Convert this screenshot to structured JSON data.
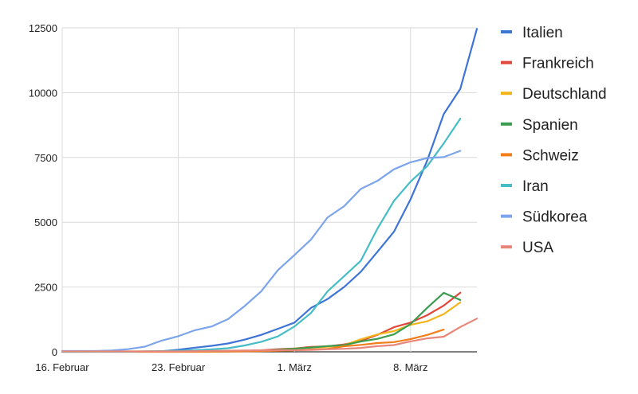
{
  "chart_data": {
    "type": "line",
    "title": "",
    "xlabel": "",
    "ylabel": "",
    "x_ticks": [
      {
        "day": 0,
        "label": "16. Februar"
      },
      {
        "day": 7,
        "label": "23. Februar"
      },
      {
        "day": 14,
        "label": "1. März"
      },
      {
        "day": 21,
        "label": "8. März"
      }
    ],
    "x_range": [
      0,
      25
    ],
    "ylim": [
      0,
      12500
    ],
    "y_ticks": [
      0,
      2500,
      5000,
      7500,
      10000,
      12500
    ],
    "grid": true,
    "legend_position": "right",
    "series": [
      {
        "name": "Italien",
        "color": "#3e74d6",
        "points": [
          [
            0,
            3
          ],
          [
            1,
            3
          ],
          [
            2,
            3
          ],
          [
            3,
            3
          ],
          [
            4,
            3
          ],
          [
            5,
            3
          ],
          [
            6,
            20
          ],
          [
            7,
            79
          ],
          [
            8,
            157
          ],
          [
            9,
            229
          ],
          [
            10,
            323
          ],
          [
            11,
            470
          ],
          [
            12,
            655
          ],
          [
            13,
            889
          ],
          [
            14,
            1128
          ],
          [
            15,
            1694
          ],
          [
            16,
            2036
          ],
          [
            17,
            2502
          ],
          [
            18,
            3089
          ],
          [
            19,
            3858
          ],
          [
            20,
            4636
          ],
          [
            21,
            5883
          ],
          [
            22,
            7375
          ],
          [
            23,
            9172
          ],
          [
            24,
            10149
          ],
          [
            25,
            12462
          ]
        ]
      },
      {
        "name": "Frankreich",
        "color": "#e0463a",
        "points": [
          [
            0,
            12
          ],
          [
            5,
            12
          ],
          [
            7,
            12
          ],
          [
            9,
            18
          ],
          [
            11,
            38
          ],
          [
            12,
            57
          ],
          [
            13,
            100
          ],
          [
            14,
            130
          ],
          [
            15,
            191
          ],
          [
            16,
            212
          ],
          [
            17,
            285
          ],
          [
            18,
            423
          ],
          [
            19,
            653
          ],
          [
            20,
            949
          ],
          [
            21,
            1126
          ],
          [
            22,
            1412
          ],
          [
            23,
            1784
          ],
          [
            24,
            2281
          ]
        ]
      },
      {
        "name": "Deutschland",
        "color": "#f3b41a",
        "points": [
          [
            0,
            16
          ],
          [
            7,
            16
          ],
          [
            9,
            18
          ],
          [
            11,
            27
          ],
          [
            12,
            46
          ],
          [
            13,
            57
          ],
          [
            14,
            130
          ],
          [
            15,
            159
          ],
          [
            16,
            196
          ],
          [
            17,
            262
          ],
          [
            18,
            482
          ],
          [
            19,
            670
          ],
          [
            20,
            799
          ],
          [
            21,
            1040
          ],
          [
            22,
            1176
          ],
          [
            23,
            1457
          ],
          [
            24,
            1908
          ]
        ]
      },
      {
        "name": "Spanien",
        "color": "#3a9c4e",
        "points": [
          [
            0,
            2
          ],
          [
            8,
            2
          ],
          [
            10,
            15
          ],
          [
            11,
            32
          ],
          [
            12,
            45
          ],
          [
            13,
            84
          ],
          [
            14,
            120
          ],
          [
            15,
            165
          ],
          [
            16,
            222
          ],
          [
            17,
            259
          ],
          [
            18,
            400
          ],
          [
            19,
            500
          ],
          [
            20,
            673
          ],
          [
            21,
            1073
          ],
          [
            22,
            1695
          ],
          [
            23,
            2277
          ],
          [
            24,
            2000
          ]
        ]
      },
      {
        "name": "Schweiz",
        "color": "#f27d1b",
        "points": [
          [
            0,
            0
          ],
          [
            8,
            1
          ],
          [
            10,
            8
          ],
          [
            11,
            18
          ],
          [
            12,
            27
          ],
          [
            13,
            42
          ],
          [
            14,
            56
          ],
          [
            15,
            90
          ],
          [
            16,
            114
          ],
          [
            17,
            214
          ],
          [
            18,
            268
          ],
          [
            19,
            337
          ],
          [
            20,
            374
          ],
          [
            21,
            491
          ],
          [
            22,
            652
          ],
          [
            23,
            858
          ]
        ]
      },
      {
        "name": "Iran",
        "color": "#46bdc6",
        "points": [
          [
            0,
            0
          ],
          [
            4,
            2
          ],
          [
            5,
            18
          ],
          [
            6,
            28
          ],
          [
            7,
            43
          ],
          [
            8,
            61
          ],
          [
            9,
            95
          ],
          [
            10,
            139
          ],
          [
            11,
            245
          ],
          [
            12,
            388
          ],
          [
            13,
            593
          ],
          [
            14,
            978
          ],
          [
            15,
            1501
          ],
          [
            16,
            2336
          ],
          [
            17,
            2922
          ],
          [
            18,
            3513
          ],
          [
            19,
            4747
          ],
          [
            20,
            5823
          ],
          [
            21,
            6566
          ],
          [
            22,
            7161
          ],
          [
            23,
            8042
          ],
          [
            24,
            9000
          ]
        ]
      },
      {
        "name": "Südkorea",
        "color": "#7ba4ec",
        "points": [
          [
            0,
            30
          ],
          [
            1,
            30
          ],
          [
            2,
            31
          ],
          [
            3,
            51
          ],
          [
            4,
            104
          ],
          [
            5,
            204
          ],
          [
            6,
            433
          ],
          [
            7,
            602
          ],
          [
            8,
            833
          ],
          [
            9,
            977
          ],
          [
            10,
            1261
          ],
          [
            11,
            1766
          ],
          [
            12,
            2337
          ],
          [
            13,
            3150
          ],
          [
            14,
            3736
          ],
          [
            15,
            4335
          ],
          [
            16,
            5186
          ],
          [
            17,
            5621
          ],
          [
            18,
            6284
          ],
          [
            19,
            6593
          ],
          [
            20,
            7041
          ],
          [
            21,
            7314
          ],
          [
            22,
            7478
          ],
          [
            23,
            7513
          ],
          [
            24,
            7755
          ]
        ]
      },
      {
        "name": "USA",
        "color": "#e8867a",
        "points": [
          [
            0,
            15
          ],
          [
            7,
            15
          ],
          [
            9,
            35
          ],
          [
            11,
            53
          ],
          [
            12,
            57
          ],
          [
            13,
            60
          ],
          [
            14,
            66
          ],
          [
            15,
            74
          ],
          [
            16,
            98
          ],
          [
            17,
            118
          ],
          [
            18,
            149
          ],
          [
            19,
            217
          ],
          [
            20,
            262
          ],
          [
            21,
            402
          ],
          [
            22,
            518
          ],
          [
            23,
            583
          ],
          [
            24,
            959
          ],
          [
            25,
            1281
          ]
        ]
      }
    ]
  }
}
